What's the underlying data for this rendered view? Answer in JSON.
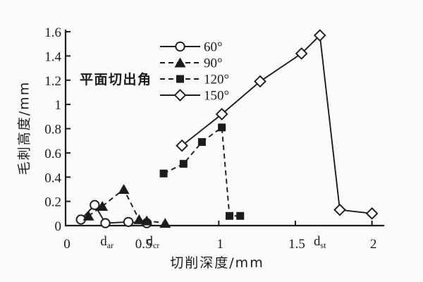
{
  "ink_color": "#1c1c1c",
  "paper_color": "#fcfbf9",
  "chart_data": {
    "type": "line",
    "title": "",
    "xlabel": "切削深度/mm",
    "ylabel": "毛刺高度/mm",
    "xlim": [
      0,
      2.08
    ],
    "ylim": [
      0,
      1.6
    ],
    "grid": false,
    "x_ticks": [
      0,
      0.5,
      1,
      1.5,
      2
    ],
    "x_tick_labels": [
      "0",
      "0.5",
      "1",
      "1.5",
      "2"
    ],
    "y_ticks": [
      0,
      0.2,
      0.4,
      0.6,
      0.8,
      1,
      1.2,
      1.4,
      1.6
    ],
    "y_tick_labels": [
      "0",
      "0.2",
      "0.4",
      "0.6",
      "0.8",
      "1",
      "1.2",
      "1.4",
      "1.6"
    ],
    "x_annotations": [
      {
        "base": "d",
        "sub": "ar",
        "x": 0.27
      },
      {
        "base": "d",
        "sub": "cr",
        "x": 0.57
      },
      {
        "base": "d",
        "sub": "st",
        "x": 1.66
      }
    ],
    "legend": {
      "title": "平面切出角",
      "position": "upper-left-inside"
    },
    "series": [
      {
        "name": "60°",
        "marker": "circle-open",
        "line": "solid",
        "points": [
          [
            0.1,
            0.05
          ],
          [
            0.19,
            0.17
          ],
          [
            0.26,
            0.02
          ],
          [
            0.41,
            0.03
          ],
          [
            0.53,
            0.02
          ]
        ]
      },
      {
        "name": "90°",
        "marker": "triangle-filled",
        "line": "dashed",
        "points": [
          [
            0.15,
            0.08
          ],
          [
            0.24,
            0.16
          ],
          [
            0.38,
            0.3
          ],
          [
            0.48,
            0.05
          ],
          [
            0.53,
            0.04
          ],
          [
            0.65,
            0.02
          ]
        ]
      },
      {
        "name": "120°",
        "marker": "square-filled",
        "line": "dashed",
        "points": [
          [
            0.64,
            0.43
          ],
          [
            0.77,
            0.51
          ],
          [
            0.89,
            0.69
          ],
          [
            1.02,
            0.81
          ],
          [
            1.07,
            0.08
          ],
          [
            1.14,
            0.08
          ]
        ]
      },
      {
        "name": "150°",
        "marker": "diamond-open",
        "line": "solid",
        "points": [
          [
            0.76,
            0.66
          ],
          [
            1.02,
            0.92
          ],
          [
            1.27,
            1.19
          ],
          [
            1.54,
            1.42
          ],
          [
            1.66,
            1.57
          ],
          [
            1.79,
            0.13
          ],
          [
            2.0,
            0.1
          ]
        ]
      }
    ]
  }
}
